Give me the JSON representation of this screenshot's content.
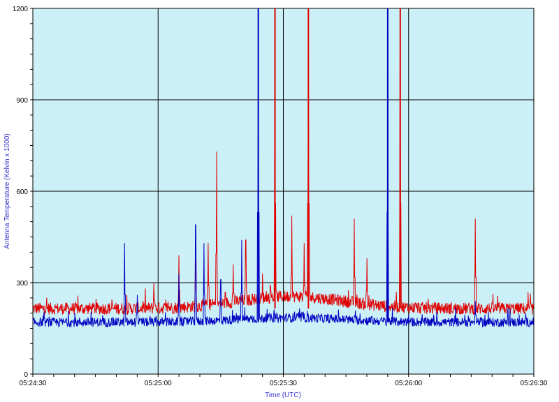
{
  "chart_data": {
    "type": "line",
    "title": "",
    "xlabel": "Time (UTC)",
    "ylabel": "Antenna Temperature (Kelvin x 1000)",
    "xlim": [
      "05:24:30",
      "05:26:30"
    ],
    "ylim": [
      0,
      1200
    ],
    "x_ticks": [
      "05:24:30",
      "05:25:00",
      "05:25:30",
      "05:26:00",
      "05:26:30"
    ],
    "y_ticks": [
      "0",
      "300",
      "600",
      "900",
      "1200"
    ],
    "grid": true,
    "legend": "none",
    "background_color": "#ccf0f8",
    "grid_color": "#000000",
    "series": [
      {
        "color": "#e00000",
        "baseline": 215,
        "noise": 20,
        "spikes": [
          {
            "t": "05:24:59",
            "v": 300
          },
          {
            "t": "05:25:05",
            "v": 390
          },
          {
            "t": "05:25:09",
            "v": 370
          },
          {
            "t": "05:25:12",
            "v": 430
          },
          {
            "t": "05:25:14",
            "v": 730
          },
          {
            "t": "05:25:18",
            "v": 360
          },
          {
            "t": "05:25:21",
            "v": 440
          },
          {
            "t": "05:25:25",
            "v": 330
          },
          {
            "t": "05:25:28",
            "v": 1200
          },
          {
            "t": "05:25:32",
            "v": 520
          },
          {
            "t": "05:25:35",
            "v": 430
          },
          {
            "t": "05:25:36",
            "v": 1200
          },
          {
            "t": "05:25:47",
            "v": 510
          },
          {
            "t": "05:25:50",
            "v": 380
          },
          {
            "t": "05:25:58",
            "v": 1200
          },
          {
            "t": "05:26:16",
            "v": 510
          }
        ]
      },
      {
        "color": "#0000c0",
        "baseline": 170,
        "noise": 15,
        "spikes": [
          {
            "t": "05:24:52",
            "v": 430
          },
          {
            "t": "05:24:55",
            "v": 260
          },
          {
            "t": "05:25:05",
            "v": 330
          },
          {
            "t": "05:25:09",
            "v": 490
          },
          {
            "t": "05:25:11",
            "v": 430
          },
          {
            "t": "05:25:15",
            "v": 310
          },
          {
            "t": "05:25:20",
            "v": 440
          },
          {
            "t": "05:25:24",
            "v": 1200
          },
          {
            "t": "05:25:55",
            "v": 1200
          },
          {
            "t": "05:26:16",
            "v": 240
          }
        ]
      }
    ]
  }
}
